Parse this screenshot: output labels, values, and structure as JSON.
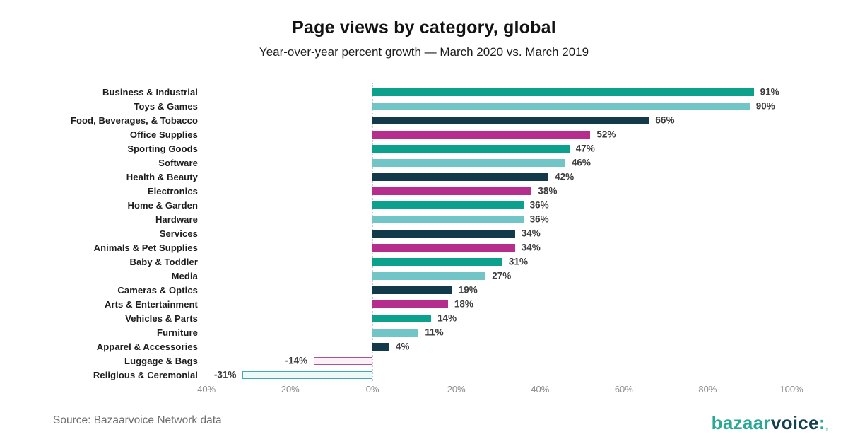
{
  "header": {
    "title": "Page views by category, global",
    "subtitle": "Year-over-year percent growth — March 2020 vs. March 2019"
  },
  "chart_data": {
    "type": "bar",
    "orientation": "horizontal",
    "title": "Page views by category, global",
    "subtitle": "Year-over-year percent growth — March 2020 vs. March 2019",
    "xlabel": "",
    "ylabel": "",
    "xlim": [
      -40,
      100
    ],
    "grid": false,
    "zero_axis_line": true,
    "legend": "none",
    "value_suffix": "%",
    "palette": {
      "teal_green": "#0ba18c",
      "light_teal": "#72c5c7",
      "dark_navy": "#123a4b",
      "magenta": "#b62e8d"
    },
    "bars": [
      {
        "category": "Business & Industrial",
        "value": 91,
        "label": "91%",
        "style": "solid",
        "color": "#0ba18c"
      },
      {
        "category": "Toys & Games",
        "value": 90,
        "label": "90%",
        "style": "solid",
        "color": "#72c5c7"
      },
      {
        "category": "Food, Beverages, & Tobacco",
        "value": 66,
        "label": "66%",
        "style": "solid",
        "color": "#123a4b"
      },
      {
        "category": "Office Supplies",
        "value": 52,
        "label": "52%",
        "style": "solid",
        "color": "#b62e8d"
      },
      {
        "category": "Sporting Goods",
        "value": 47,
        "label": "47%",
        "style": "solid",
        "color": "#0ba18c"
      },
      {
        "category": "Software",
        "value": 46,
        "label": "46%",
        "style": "solid",
        "color": "#72c5c7"
      },
      {
        "category": "Health & Beauty",
        "value": 42,
        "label": "42%",
        "style": "solid",
        "color": "#123a4b"
      },
      {
        "category": "Electronics",
        "value": 38,
        "label": "38%",
        "style": "solid",
        "color": "#b62e8d"
      },
      {
        "category": "Home & Garden",
        "value": 36,
        "label": "36%",
        "style": "solid",
        "color": "#0ba18c"
      },
      {
        "category": "Hardware",
        "value": 36,
        "label": "36%",
        "style": "solid",
        "color": "#72c5c7"
      },
      {
        "category": "Services",
        "value": 34,
        "label": "34%",
        "style": "solid",
        "color": "#123a4b"
      },
      {
        "category": "Animals & Pet Supplies",
        "value": 34,
        "label": "34%",
        "style": "solid",
        "color": "#b62e8d"
      },
      {
        "category": "Baby & Toddler",
        "value": 31,
        "label": "31%",
        "style": "solid",
        "color": "#0ba18c"
      },
      {
        "category": "Media",
        "value": 27,
        "label": "27%",
        "style": "solid",
        "color": "#72c5c7"
      },
      {
        "category": "Cameras & Optics",
        "value": 19,
        "label": "19%",
        "style": "solid",
        "color": "#123a4b"
      },
      {
        "category": "Arts & Entertainment",
        "value": 18,
        "label": "18%",
        "style": "solid",
        "color": "#b62e8d"
      },
      {
        "category": "Vehicles & Parts",
        "value": 14,
        "label": "14%",
        "style": "solid",
        "color": "#0ba18c"
      },
      {
        "category": "Furniture",
        "value": 11,
        "label": "11%",
        "style": "solid",
        "color": "#72c5c7"
      },
      {
        "category": "Apparel & Accessories",
        "value": 4,
        "label": "4%",
        "style": "solid",
        "color": "#123a4b"
      },
      {
        "category": "Luggage & Bags",
        "value": -14,
        "label": "-14%",
        "style": "hollow",
        "color": "#b62e8d",
        "border": "#a8529a",
        "fill": "#fdf1f9"
      },
      {
        "category": "Religious & Ceremonial",
        "value": -31,
        "label": "-31%",
        "style": "hollow",
        "color": "#0ba18c",
        "border": "#45a8aa",
        "fill": "#ecf9f9"
      }
    ],
    "x_ticks": [
      {
        "value": -40,
        "label": "-40%"
      },
      {
        "value": -20,
        "label": "-20%"
      },
      {
        "value": 0,
        "label": "0%"
      },
      {
        "value": 20,
        "label": "20%"
      },
      {
        "value": 40,
        "label": "40%"
      },
      {
        "value": 60,
        "label": "60%"
      },
      {
        "value": 80,
        "label": "80%"
      },
      {
        "value": 100,
        "label": "100%"
      }
    ]
  },
  "footer": {
    "source": "Source: Bazaarvoice Network data",
    "logo": {
      "part1": "bazaar",
      "part2": "voice",
      "colon": ":",
      "mark": ","
    }
  }
}
